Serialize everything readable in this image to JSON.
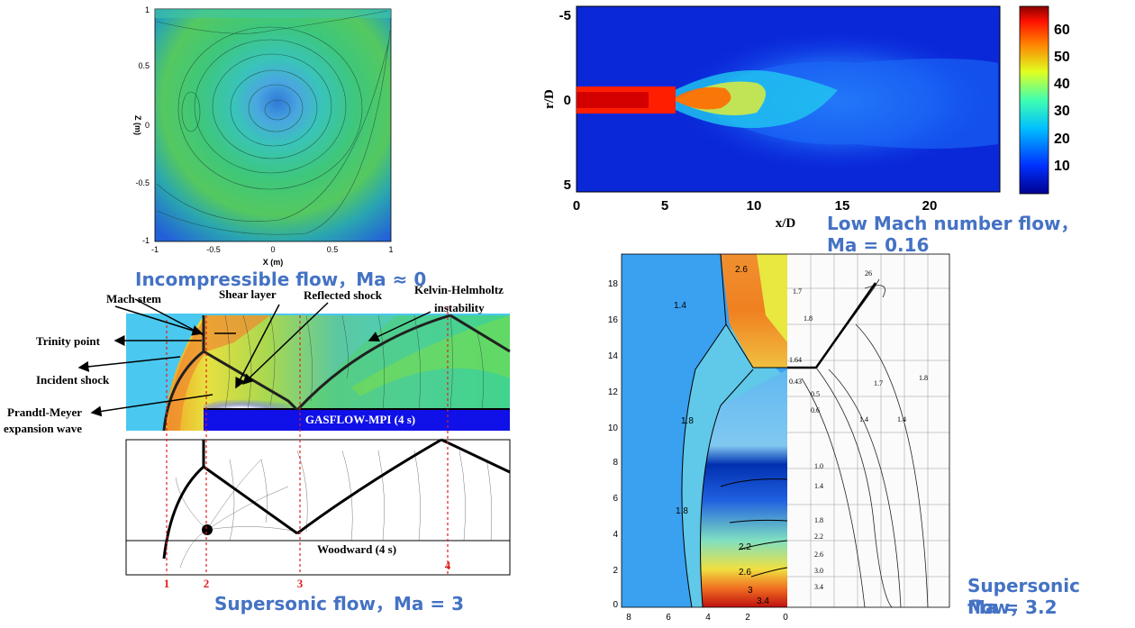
{
  "captions": {
    "incompressible": "Incompressible flow，Ma ≈ 0",
    "low_mach_line1": "Low Mach number flow，",
    "low_mach_line2": "Ma = 0.16",
    "supersonic3": "Supersonic flow，Ma = 3",
    "supersonic32_line1": "Supersonic flow，",
    "supersonic32_line2": "Ma = 3.2"
  },
  "cavity_plot": {
    "xlabel": "X (m)",
    "ylabel": "Z (m)",
    "x_ticks": [
      "-1",
      "-0.5",
      "0",
      "0.5",
      "1"
    ],
    "y_ticks": [
      "1",
      "0.5",
      "0",
      "-0.5",
      "-1"
    ]
  },
  "jet_plot": {
    "xlabel": "x/D",
    "ylabel": "r/D",
    "x_ticks": [
      "0",
      "5",
      "10",
      "15",
      "20"
    ],
    "y_ticks": [
      "-5",
      "0",
      "5"
    ],
    "colorbar_ticks": [
      "60",
      "50",
      "40",
      "30",
      "20",
      "10"
    ],
    "colorbar_range": [
      0,
      68
    ]
  },
  "step_plot": {
    "annotations": {
      "mach_stem": "Mach stem",
      "shear_layer": "Shear layer",
      "reflected_shock": "Reflected shock",
      "kh_line1": "Kelvin-Helmholtz",
      "kh_line2": "instability",
      "trinity_point": "Trinity point",
      "incident_shock": "Incident shock",
      "pm_line1": "Prandtl-Meyer",
      "pm_line2": "expansion wave"
    },
    "sim_label": "GASFLOW-MPI (4 s)",
    "ref_label": "Woodward (4 s)",
    "markers": [
      "1",
      "2",
      "3",
      "4"
    ]
  },
  "nozzle_plot": {
    "y_ticks": [
      "18",
      "16",
      "14",
      "12",
      "10",
      "8",
      "6",
      "4",
      "2",
      "0"
    ],
    "x_ticks": [
      "8",
      "6",
      "4",
      "2",
      "0"
    ],
    "contour_labels": [
      "2.6",
      "3",
      "2.2",
      "1.4",
      "1.8",
      "2.2",
      "1.8",
      "1.8",
      "1.4",
      "1.8",
      "1.4",
      "1.8",
      "1.4",
      "1.8",
      "1.4",
      "1.8",
      "2.2",
      "2.6",
      "3",
      "3.4",
      "2.2",
      "2.6",
      "3",
      "3.4"
    ],
    "ref_labels": [
      "26",
      "1.7",
      "1.8",
      "1.64",
      "0.43",
      "0.5",
      "0.6",
      "1.7",
      "1.8",
      "1.4",
      "1.4",
      "1.0",
      "1.4",
      "1.8",
      "2.2",
      "2.6",
      "3.0",
      "3.4",
      "1.4"
    ]
  }
}
